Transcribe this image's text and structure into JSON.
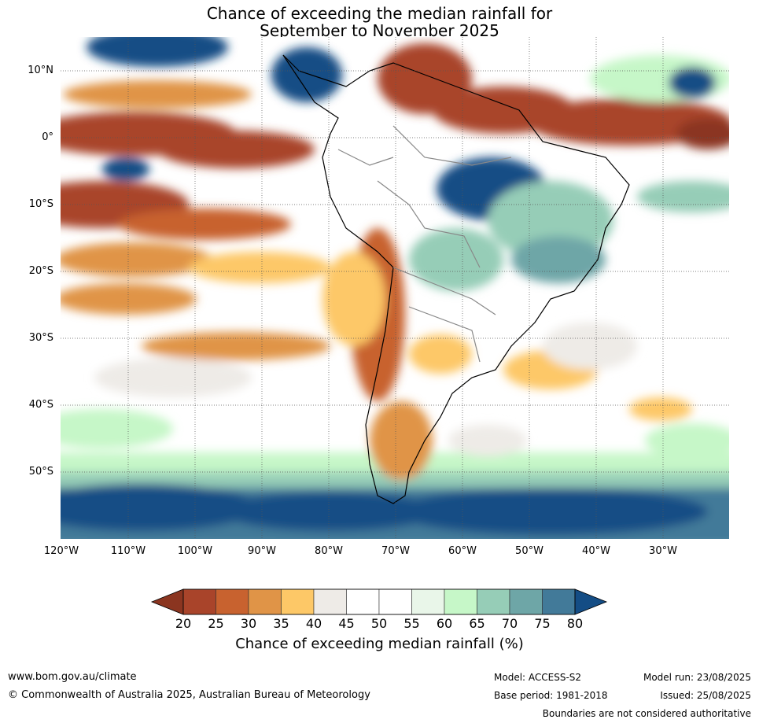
{
  "title_line1": "Chance of exceeding the median rainfall for",
  "title_line2": "September to November 2025",
  "map": {
    "lat_labels": [
      "10°N",
      "0°",
      "10°S",
      "20°S",
      "30°S",
      "40°S",
      "50°S"
    ],
    "lon_labels": [
      "120°W",
      "110°W",
      "100°W",
      "90°W",
      "80°W",
      "70°W",
      "60°W",
      "50°W",
      "40°W",
      "30°W"
    ]
  },
  "colorbar": {
    "ticks": [
      "20",
      "25",
      "30",
      "35",
      "40",
      "45",
      "50",
      "55",
      "60",
      "65",
      "70",
      "75",
      "80"
    ],
    "colors": [
      "#8b3520",
      "#a9442a",
      "#c8622f",
      "#e09447",
      "#fdc867",
      "#eeebe7",
      "#ffffff",
      "#ffffff",
      "#e9f6e9",
      "#c6f7c8",
      "#96cdb7",
      "#6ea6a7",
      "#427a99",
      "#144d85"
    ],
    "label": "Chance of exceeding median rainfall (%)"
  },
  "footer": {
    "website": "www.bom.gov.au/climate",
    "copyright": "© Commonwealth of Australia 2025, Australian Bureau of Meteorology",
    "model": "Model: ACCESS-S2",
    "base_period": "Base period: 1981-2018",
    "model_run": "Model run: 23/08/2025",
    "issued": "Issued: 25/08/2025",
    "disclaimer": "Boundaries are not considered authoritative"
  }
}
